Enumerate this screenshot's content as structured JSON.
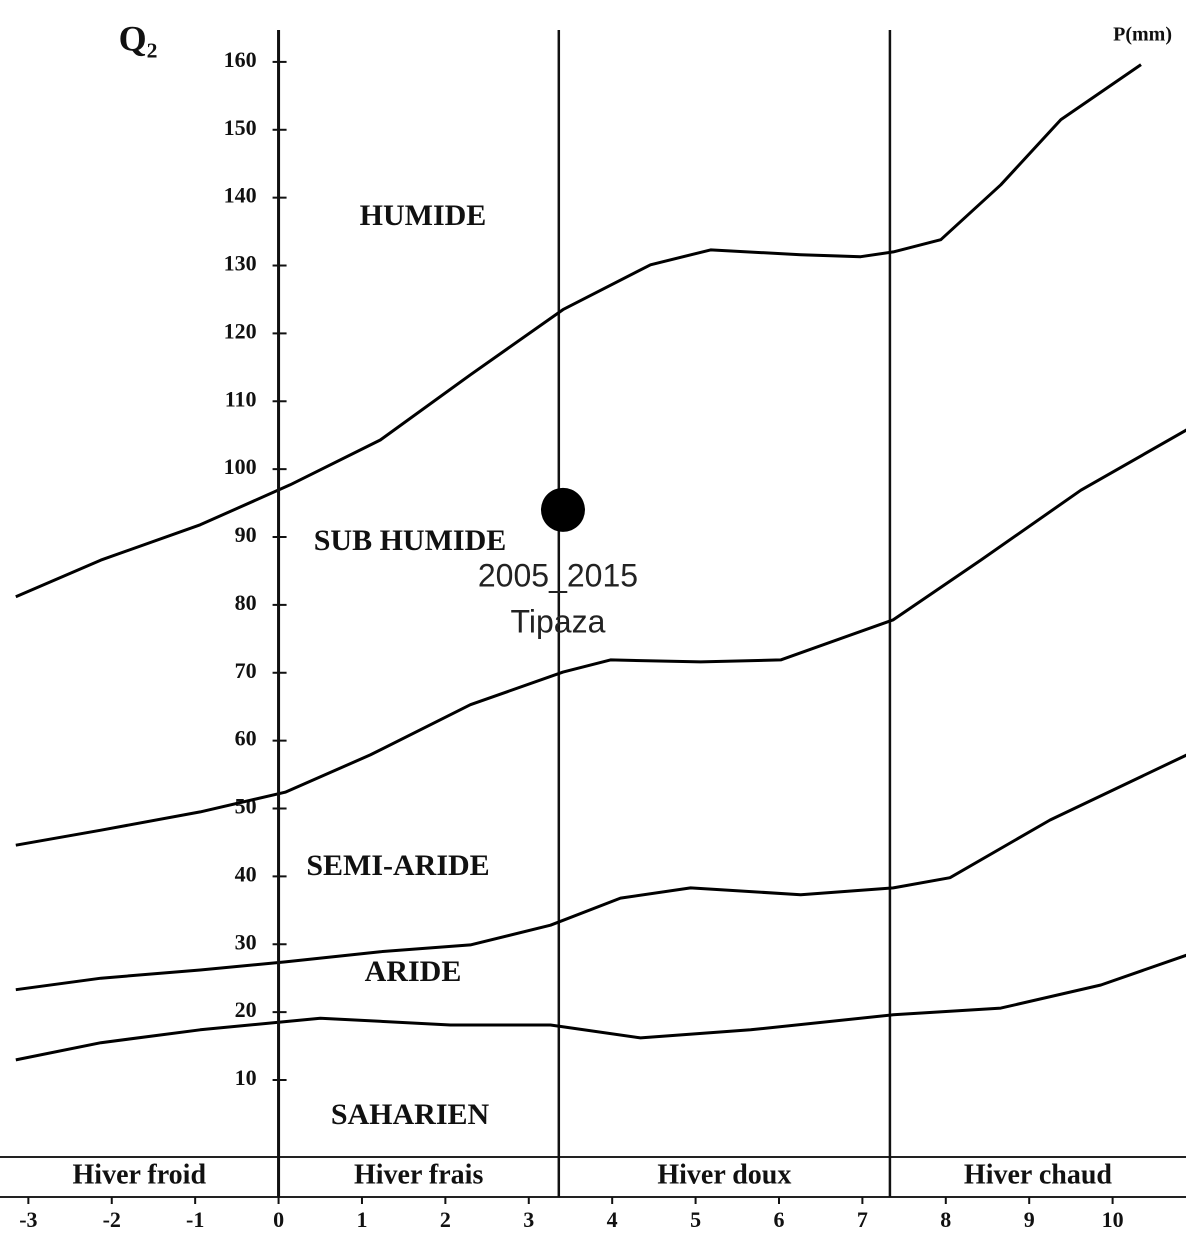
{
  "chart_data": {
    "type": "line",
    "y_label": "Q₂",
    "annotations": [
      "P(mm)"
    ],
    "zones": [
      "HUMIDE",
      "SUB HUMIDE",
      "SEMI-ARIDE",
      "ARIDE",
      "SAHARIEN"
    ],
    "seasons": [
      "Hiver froid",
      "Hiver frais",
      "Hiver doux",
      "Hiver chaud"
    ],
    "season_boundaries": [
      0,
      3.36,
      7.33
    ],
    "xlim": [
      -3.34,
      10.88
    ],
    "xticks": [
      -3,
      -2,
      -1,
      0,
      1,
      2,
      3,
      4,
      5,
      6,
      7,
      8,
      9,
      10
    ],
    "ylim": [
      -1.05,
      164.7
    ],
    "yticks": [
      10,
      20,
      30,
      40,
      50,
      60,
      70,
      80,
      90,
      100,
      110,
      120,
      130,
      140,
      150,
      160
    ],
    "series": [
      {
        "color": "#000000",
        "x": [
          -3.15,
          -2.13,
          -0.94,
          0.14,
          1.22,
          2.3,
          3.41,
          4.46,
          5.18,
          6.26,
          6.98,
          7.37,
          7.94,
          8.66,
          9.38,
          10.34
        ],
        "values": [
          81.2,
          86.6,
          91.8,
          97.7,
          104.3,
          113.9,
          123.5,
          130.1,
          132.3,
          131.6,
          131.3,
          132.0,
          133.8,
          141.9,
          151.5,
          159.6
        ]
      },
      {
        "color": "#000000",
        "x": [
          -3.15,
          -2.13,
          -0.94,
          0.08,
          1.1,
          2.3,
          3.41,
          3.98,
          5.06,
          6.02,
          7.37,
          8.42,
          9.62,
          10.89
        ],
        "values": [
          44.6,
          46.8,
          49.5,
          52.4,
          57.9,
          65.3,
          70.1,
          71.9,
          71.6,
          71.9,
          77.8,
          86.6,
          96.9,
          105.8
        ]
      },
      {
        "color": "#000000",
        "x": [
          -3.15,
          -2.13,
          -0.94,
          0.08,
          1.22,
          2.3,
          3.26,
          4.1,
          4.94,
          6.26,
          7.37,
          8.05,
          9.25,
          10.89
        ],
        "values": [
          23.3,
          25.0,
          26.2,
          27.4,
          28.9,
          29.9,
          32.8,
          36.8,
          38.3,
          37.3,
          38.3,
          39.8,
          48.3,
          57.9
        ]
      },
      {
        "color": "#000000",
        "x": [
          -3.15,
          -2.13,
          -0.94,
          0.08,
          0.5,
          2.06,
          3.26,
          4.34,
          5.66,
          7.37,
          8.66,
          9.86,
          10.89
        ],
        "values": [
          12.96,
          15.5,
          17.4,
          18.6,
          19.1,
          18.1,
          18.1,
          16.2,
          17.4,
          19.6,
          20.6,
          24.0,
          28.4
        ]
      }
    ],
    "points": [
      {
        "x": 3.41,
        "y": 94.0,
        "period": "2005_2015",
        "station": "Tipaza",
        "color": "#000000"
      }
    ]
  }
}
